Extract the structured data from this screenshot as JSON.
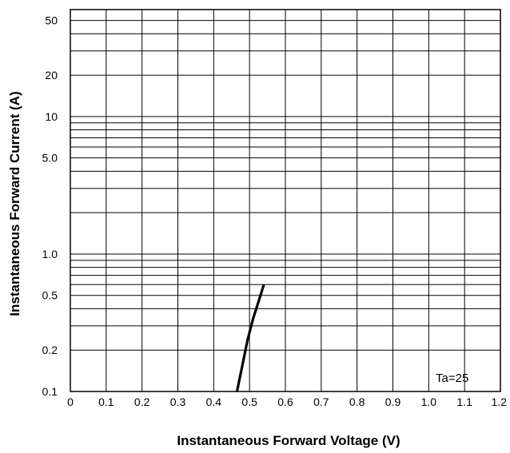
{
  "chart_data": {
    "type": "line",
    "title": "",
    "xlabel": "Instantaneous Forward Voltage (V)",
    "ylabel": "Instantaneous Forward Current (A)",
    "xlim": [
      0,
      1.2
    ],
    "ylim": [
      0.1,
      60
    ],
    "y_scale": "log",
    "grid": true,
    "x_ticks": [
      0,
      0.1,
      0.2,
      0.3,
      0.4,
      0.5,
      0.6,
      0.7,
      0.8,
      0.9,
      1.0,
      1.1,
      1.2
    ],
    "x_tick_labels": [
      "0",
      "0.1",
      "0.2",
      "0.3",
      "0.4",
      "0.5",
      "0.6",
      "0.7",
      "0.8",
      "0.9",
      "1.0",
      "1.1",
      "1.2"
    ],
    "y_ticks": [
      0.1,
      0.2,
      0.5,
      1.0,
      5.0,
      10,
      20,
      50
    ],
    "y_tick_labels": [
      "0.1",
      "0.2",
      "0.5",
      "1.0",
      "5.0",
      "10",
      "20",
      "50"
    ],
    "annotations": [
      "Ta=25"
    ],
    "series": [
      {
        "x": [
          0.465,
          0.48,
          0.495,
          0.51,
          0.525,
          0.54
        ],
        "y": [
          0.1,
          0.155,
          0.24,
          0.34,
          0.45,
          0.6
        ]
      }
    ]
  }
}
